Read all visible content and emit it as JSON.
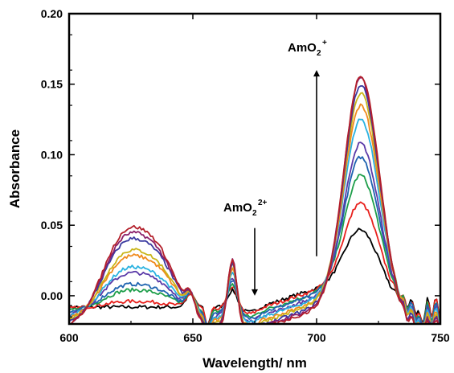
{
  "chart_data": {
    "type": "line",
    "title": "",
    "xlabel": "Wavelength/ nm",
    "ylabel": "Absorbance",
    "xlim": [
      600,
      750
    ],
    "ylim": [
      -0.02,
      0.2
    ],
    "x_ticks": [
      "600",
      "650",
      "700",
      "750"
    ],
    "y_ticks": [
      "0.00",
      "0.05",
      "0.10",
      "0.15",
      "0.20"
    ],
    "x_tick_values": [
      600,
      650,
      700,
      750
    ],
    "y_tick_values": [
      0,
      0.05,
      0.1,
      0.15,
      0.2
    ],
    "grid": false,
    "legend": "none",
    "annotations": [
      {
        "base": "AmO",
        "sub": "2",
        "sup": "2+",
        "arrow": "down",
        "x": 675,
        "y_from": 0.048,
        "y_to": 0.0
      },
      {
        "base": "AmO",
        "sub": "2",
        "sup": "+",
        "arrow": "up",
        "x": 700,
        "y_from": 0.028,
        "y_to": 0.16
      }
    ],
    "series": [
      {
        "color": "#000000",
        "peak665": 0.012,
        "peak718": 0.052,
        "short_band": 0.0
      },
      {
        "color": "#e8201c",
        "peak665": 0.016,
        "peak718": 0.072,
        "short_band": 0.001
      },
      {
        "color": "#1e9e4a",
        "peak665": 0.02,
        "peak718": 0.094,
        "short_band": 0.003
      },
      {
        "color": "#1e63b0",
        "peak665": 0.024,
        "peak718": 0.108,
        "short_band": 0.004
      },
      {
        "color": "#5a3aa8",
        "peak665": 0.028,
        "peak718": 0.12,
        "short_band": 0.006
      },
      {
        "color": "#2ab2e0",
        "peak665": 0.032,
        "peak718": 0.138,
        "short_band": 0.007
      },
      {
        "color": "#f08a1c",
        "peak665": 0.038,
        "peak718": 0.15,
        "short_band": 0.009
      },
      {
        "color": "#c9b51a",
        "peak665": 0.042,
        "peak718": 0.16,
        "short_band": 0.01
      },
      {
        "color": "#3a3aa0",
        "peak665": 0.045,
        "peak718": 0.168,
        "short_band": 0.012
      },
      {
        "color": "#8a1f6a",
        "peak665": 0.048,
        "peak718": 0.174,
        "short_band": 0.013
      },
      {
        "color": "#b31f2a",
        "peak665": 0.049,
        "peak718": 0.177,
        "short_band": 0.014
      }
    ]
  }
}
